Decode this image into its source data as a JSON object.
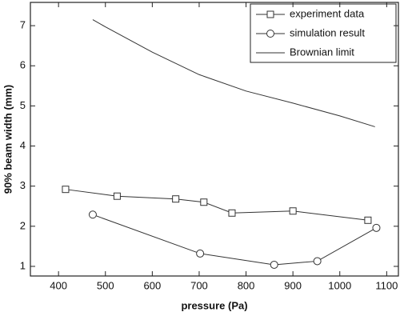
{
  "chart_data": {
    "type": "line",
    "x_label": "pressure (Pa)",
    "y_label": "90% beam width (mm)",
    "xlim": [
      340,
      1125
    ],
    "ylim": [
      0.76,
      7.58
    ],
    "xticks": [
      400,
      500,
      600,
      700,
      800,
      900,
      1000,
      1100
    ],
    "yticks": [
      1,
      2,
      3,
      4,
      5,
      6,
      7
    ],
    "legend": "upper-right",
    "series": [
      {
        "name": "experiment data",
        "color": "#333333",
        "marker": "square",
        "x": [
          415,
          525,
          650,
          710,
          770,
          900,
          1060
        ],
        "values": [
          2.92,
          2.75,
          2.68,
          2.6,
          2.33,
          2.38,
          2.15
        ]
      },
      {
        "name": "simulation result",
        "color": "#333333",
        "marker": "circle",
        "x": [
          473,
          702,
          860,
          952,
          1078
        ],
        "values": [
          2.29,
          1.32,
          1.04,
          1.13,
          1.96
        ]
      },
      {
        "name": "Brownian limit",
        "color": "#333333",
        "marker": "none",
        "x": [
          473,
          500,
          600,
          700,
          800,
          900,
          1000,
          1075
        ],
        "values": [
          7.15,
          6.97,
          6.34,
          5.78,
          5.37,
          5.07,
          4.75,
          4.48
        ]
      }
    ]
  }
}
